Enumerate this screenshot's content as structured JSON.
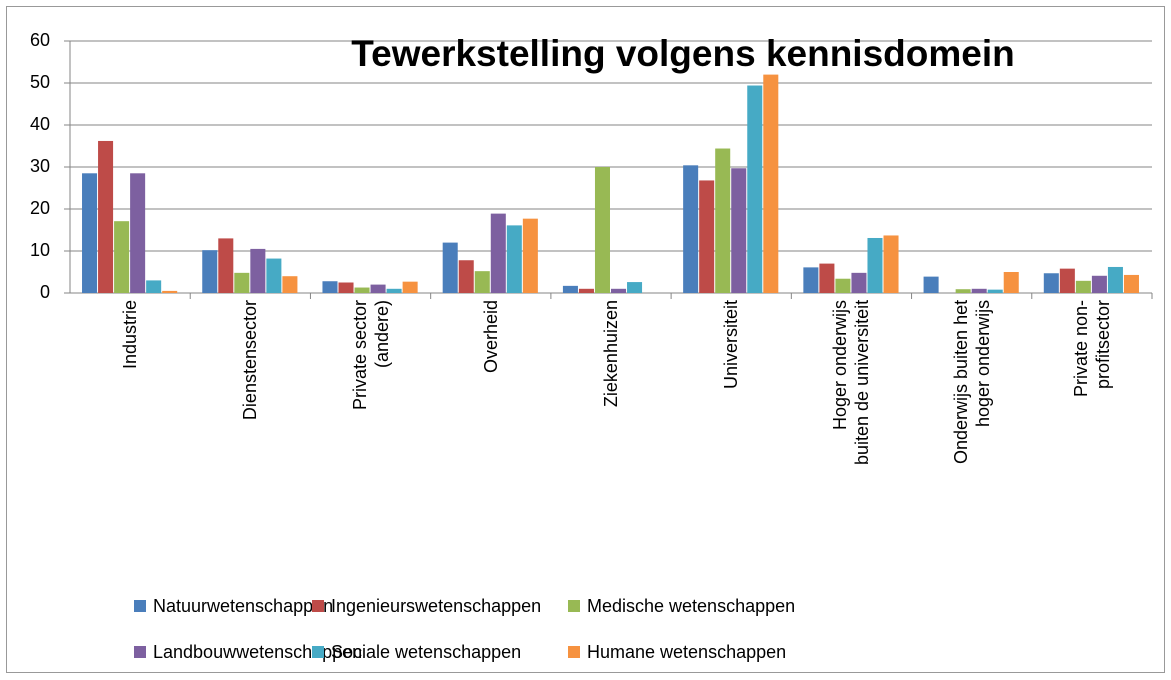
{
  "chart_data": {
    "type": "bar",
    "title": "Tewerkstelling volgens kennisdomein",
    "categories": [
      "Industrie",
      "Dienstensector",
      "Private sector (andere)",
      "Overheid",
      "Ziekenhuizen",
      "Universiteit",
      "Hoger onderwijs buiten de universiteit",
      "Onderwijs buiten het hoger onderwijs",
      "Private non-profitsector"
    ],
    "series": [
      {
        "name": "Natuurwetenschappen",
        "color": "#4a7ebb",
        "values": [
          28.5,
          10.2,
          2.8,
          12,
          1.7,
          30.4,
          6.1,
          3.9,
          4.7
        ]
      },
      {
        "name": "Ingenieurswetenschappen",
        "color": "#be4b48",
        "values": [
          36.2,
          13,
          2.5,
          7.8,
          1,
          26.8,
          7,
          0,
          5.8
        ]
      },
      {
        "name": "Medische wetenschappen",
        "color": "#98b954",
        "values": [
          17.1,
          4.8,
          1.3,
          5.2,
          30,
          34.4,
          3.4,
          0.9,
          2.9
        ]
      },
      {
        "name": "Landbouwwetenschappen",
        "color": "#7d60a0",
        "values": [
          28.5,
          10.5,
          2,
          18.9,
          1,
          29.7,
          4.8,
          1,
          4.1
        ]
      },
      {
        "name": "Sociale wetenschappen",
        "color": "#46aac5",
        "values": [
          3,
          8.2,
          1,
          16.1,
          2.6,
          49.4,
          13.1,
          0.8,
          6.2
        ]
      },
      {
        "name": "Humane wetenschappen",
        "color": "#f69240",
        "values": [
          0.5,
          4,
          2.7,
          17.7,
          0,
          52,
          13.7,
          5,
          4.3
        ]
      }
    ],
    "ylim": [
      0,
      60
    ],
    "yticks": [
      0,
      10,
      20,
      30,
      40,
      50,
      60
    ],
    "grid": true
  }
}
